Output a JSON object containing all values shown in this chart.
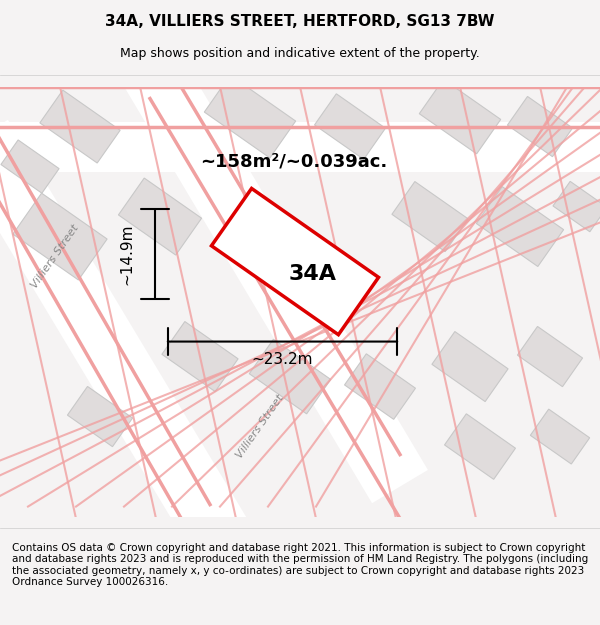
{
  "title": "34A, VILLIERS STREET, HERTFORD, SG13 7BW",
  "subtitle": "Map shows position and indicative extent of the property.",
  "footer": "Contains OS data © Crown copyright and database right 2021. This information is subject to Crown copyright and database rights 2023 and is reproduced with the permission of HM Land Registry. The polygons (including the associated geometry, namely x, y co-ordinates) are subject to Crown copyright and database rights 2023 Ordnance Survey 100026316.",
  "area_label": "~158m²/~0.039ac.",
  "width_label": "~23.2m",
  "height_label": "~14.9m",
  "property_label": "34A",
  "bg_color": "#f0eeee",
  "map_bg_color": "#f5f3f3",
  "road_fill_color": "#ffffff",
  "building_fill_color": "#e0dcdc",
  "building_outline_color": "#cccccc",
  "road_line_color": "#f5b8b8",
  "road_line_color2": "#e8a0a0",
  "property_fill": "#ffffff",
  "property_outline": "#dd0000",
  "title_fontsize": 11,
  "subtitle_fontsize": 9,
  "footer_fontsize": 7.5,
  "label_fontsize": 13,
  "measure_fontsize": 11,
  "property_label_fontsize": 16
}
